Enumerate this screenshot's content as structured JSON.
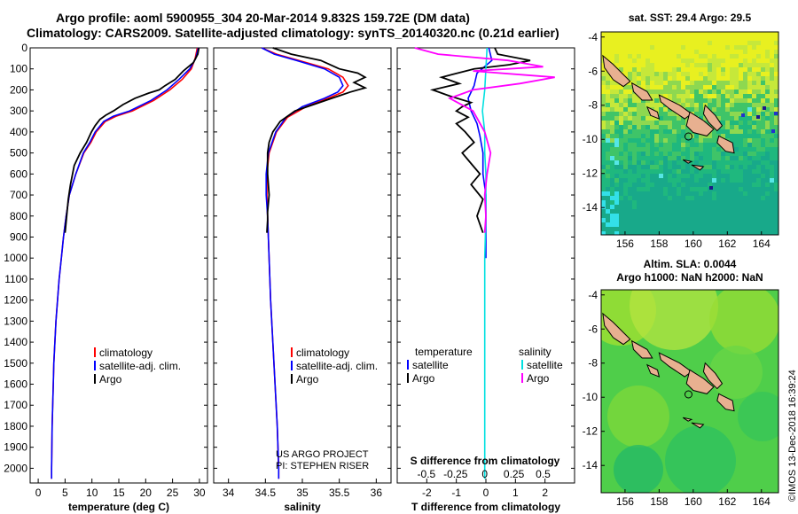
{
  "titles": {
    "line1": "Argo profile: aoml 5900955_304 20-Mar-2014 9.832S 159.72E (DM data)",
    "line2": "Climatology: CARS2009. Satellite-adjusted climatology: synTS_20140320.nc (0.21d earlier)"
  },
  "colors": {
    "climatology": "#ff0000",
    "satellite": "#0000ff",
    "argo": "#000000",
    "salinity_satellite": "#00e0e0",
    "salinity_argo": "#ff00ff"
  },
  "chart_data": [
    {
      "type": "line",
      "panel": "temperature",
      "xlabel": "temperature (deg C)",
      "xlim": [
        -1.5,
        31.5
      ],
      "xticks": [
        "0",
        "5",
        "10",
        "15",
        "20",
        "25",
        "30"
      ],
      "ylim": [
        0,
        2070
      ],
      "yticks": [
        "0",
        "100",
        "200",
        "300",
        "400",
        "500",
        "600",
        "700",
        "800",
        "900",
        "1000",
        "1100",
        "1200",
        "1300",
        "1400",
        "1500",
        "1600",
        "1700",
        "1800",
        "1900",
        "2000"
      ],
      "legend": [
        "climatology",
        "satellite-adj. clim.",
        "Argo"
      ],
      "series": [
        {
          "name": "climatology",
          "x": [
            29.6,
            29.2,
            28.5,
            26.8,
            24.5,
            21.5,
            17.5,
            14.5,
            12.5,
            10.8,
            9.8,
            8.5,
            7.0,
            5.8,
            5.2,
            4.7,
            4.3,
            3.9,
            3.6,
            3.3,
            3.1,
            2.9,
            2.8,
            2.6,
            2.5,
            2.5
          ],
          "y": [
            0,
            50,
            100,
            150,
            200,
            250,
            300,
            325,
            350,
            400,
            450,
            500,
            600,
            700,
            800,
            900,
            1000,
            1100,
            1200,
            1300,
            1400,
            1500,
            1600,
            1800,
            2000,
            2050
          ]
        },
        {
          "name": "satellite-adj. clim.",
          "x": [
            29.8,
            29.3,
            28.2,
            26.2,
            24.0,
            21.0,
            17.0,
            14.0,
            12.2,
            10.6,
            9.6,
            8.4,
            7.0,
            5.8,
            5.2,
            4.7,
            4.3,
            3.9,
            3.6,
            3.3,
            3.1,
            2.9,
            2.8,
            2.6,
            2.5,
            2.5
          ],
          "y": [
            0,
            50,
            100,
            150,
            200,
            250,
            300,
            325,
            350,
            400,
            450,
            500,
            600,
            700,
            800,
            900,
            1000,
            1100,
            1200,
            1300,
            1400,
            1500,
            1600,
            1800,
            2000,
            2050
          ]
        },
        {
          "name": "Argo",
          "x": [
            29.9,
            29.7,
            28.9,
            27.0,
            25.5,
            23.6,
            22.5,
            20.6,
            18.0,
            15.8,
            14.0,
            12.6,
            11.5,
            10.6,
            9.9,
            9.0,
            7.8,
            6.7,
            6.0,
            5.6,
            5.3,
            5.0
          ],
          "y": [
            0,
            30,
            70,
            110,
            150,
            180,
            200,
            215,
            240,
            270,
            300,
            320,
            340,
            370,
            400,
            450,
            500,
            560,
            650,
            720,
            800,
            880
          ]
        }
      ]
    },
    {
      "type": "line",
      "panel": "salinity",
      "xlabel": "salinity",
      "xlim": [
        33.8,
        36.2
      ],
      "xticks": [
        "34",
        "34.5",
        "35",
        "35.5",
        "36"
      ],
      "ylim": [
        0,
        2070
      ],
      "legend": [
        "climatology",
        "satellite-adj. clim.",
        "Argo"
      ],
      "series": [
        {
          "name": "climatology",
          "x": [
            34.45,
            34.65,
            34.95,
            35.35,
            35.55,
            35.62,
            35.55,
            35.35,
            35.05,
            34.8,
            34.65,
            34.55,
            34.52,
            34.52,
            34.53,
            34.55,
            34.57,
            34.6,
            34.63,
            34.66,
            34.68,
            34.68
          ],
          "y": [
            0,
            30,
            60,
            100,
            140,
            180,
            210,
            240,
            280,
            330,
            400,
            500,
            600,
            700,
            800,
            1000,
            1200,
            1400,
            1600,
            1800,
            2000,
            2050
          ]
        },
        {
          "name": "satellite-adj. clim.",
          "x": [
            34.45,
            34.62,
            34.92,
            35.3,
            35.5,
            35.55,
            35.48,
            35.3,
            35.0,
            34.78,
            34.64,
            34.54,
            34.51,
            34.51,
            34.53,
            34.55,
            34.57,
            34.6,
            34.63,
            34.66,
            34.68,
            34.68
          ],
          "y": [
            0,
            30,
            60,
            100,
            140,
            180,
            210,
            240,
            280,
            330,
            400,
            500,
            600,
            700,
            800,
            1000,
            1200,
            1400,
            1600,
            1800,
            2000,
            2050
          ]
        },
        {
          "name": "Argo",
          "x": [
            34.6,
            34.85,
            35.25,
            35.5,
            35.75,
            35.85,
            35.7,
            35.85,
            35.65,
            35.4,
            35.15,
            34.9,
            34.7,
            34.6,
            34.55,
            34.53,
            34.53,
            34.55,
            34.53,
            34.53,
            34.52
          ],
          "y": [
            0,
            30,
            60,
            100,
            120,
            140,
            165,
            190,
            210,
            240,
            270,
            300,
            350,
            400,
            450,
            500,
            600,
            700,
            780,
            820,
            880
          ]
        }
      ]
    },
    {
      "type": "line",
      "panel": "difference",
      "xlabel": "T difference from climatology",
      "top_label": "S difference from climatology",
      "xlim": [
        -3.0,
        3.0
      ],
      "xticks": [
        "-2",
        "-1",
        "0",
        "1",
        "2"
      ],
      "top_xticks": [
        "-0.5",
        "-0.25",
        "0",
        "0.25",
        "0.5"
      ],
      "ylim": [
        0,
        2070
      ],
      "legend_left_title": "temperature",
      "legend_right_title": "salinity",
      "legend": [
        "satellite",
        "Argo"
      ],
      "series": [
        {
          "name": "temperature satellite",
          "x": [
            0.1,
            0.2,
            -0.3,
            -0.4,
            -0.6,
            -0.5,
            -0.3,
            -0.2,
            -0.1,
            -0.1,
            0.0,
            0.0,
            0.0,
            0.0
          ],
          "y": [
            0,
            60,
            120,
            180,
            240,
            300,
            360,
            420,
            500,
            600,
            700,
            800,
            900,
            1000
          ]
        },
        {
          "name": "temperature Argo",
          "x": [
            0.3,
            0.4,
            1.5,
            0.8,
            -0.4,
            -1.5,
            -0.9,
            -1.8,
            -1.2,
            -0.5,
            -0.8,
            -1.0,
            -0.6,
            -1.0,
            -0.7,
            -0.4,
            -0.8,
            -0.5,
            -0.2,
            -0.5,
            -0.1,
            -0.3,
            -0.1
          ],
          "y": [
            0,
            30,
            60,
            80,
            100,
            140,
            170,
            200,
            230,
            260,
            280,
            300,
            330,
            360,
            400,
            450,
            500,
            550,
            600,
            650,
            720,
            800,
            880
          ]
        },
        {
          "name": "salinity satellite",
          "x": [
            0.02,
            0.01,
            0.0,
            -0.02,
            0.0,
            0.0,
            0.01,
            0.01,
            0.0,
            0.0,
            0.0,
            0.0
          ],
          "y": [
            0,
            100,
            200,
            300,
            400,
            500,
            600,
            800,
            1000,
            1400,
            1800,
            2050
          ]
        },
        {
          "name": "salinity Argo",
          "x": [
            -0.6,
            -0.4,
            0.2,
            0.5,
            -0.1,
            0.6,
            0.3,
            -0.1,
            -0.3,
            -0.1,
            0.0,
            0.05,
            0.02,
            0.0,
            0.01,
            0.0
          ],
          "y": [
            0,
            30,
            60,
            90,
            110,
            140,
            170,
            200,
            240,
            300,
            400,
            500,
            600,
            700,
            800,
            880
          ]
        }
      ]
    },
    {
      "type": "heatmap",
      "panel": "sst-map",
      "title": "sat. SST: 29.4 Argo: 29.5",
      "xticks": [
        "156",
        "158",
        "160",
        "162",
        "164"
      ],
      "yticks": [
        "-4",
        "-6",
        "-8",
        "-10",
        "-12",
        "-14"
      ],
      "xlim": [
        154.6,
        165.0
      ],
      "ylim": [
        -15.6,
        -3.7
      ]
    },
    {
      "type": "heatmap",
      "panel": "sla-map",
      "title_line1": "Altim. SLA: 0.0044",
      "title_line2": "Argo h1000: NaN h2000: NaN",
      "xticks": [
        "156",
        "158",
        "160",
        "162",
        "164"
      ],
      "yticks": [
        "-4",
        "-6",
        "-8",
        "-10",
        "-12",
        "-14"
      ],
      "xlim": [
        154.6,
        165.0
      ],
      "ylim": [
        -15.6,
        -3.7
      ]
    }
  ],
  "annotations": {
    "project": "US ARGO PROJECT",
    "pi": "PI: STEPHEN RISER",
    "watermark": "©IMOS 13-Dec-2018 16:39:24"
  }
}
